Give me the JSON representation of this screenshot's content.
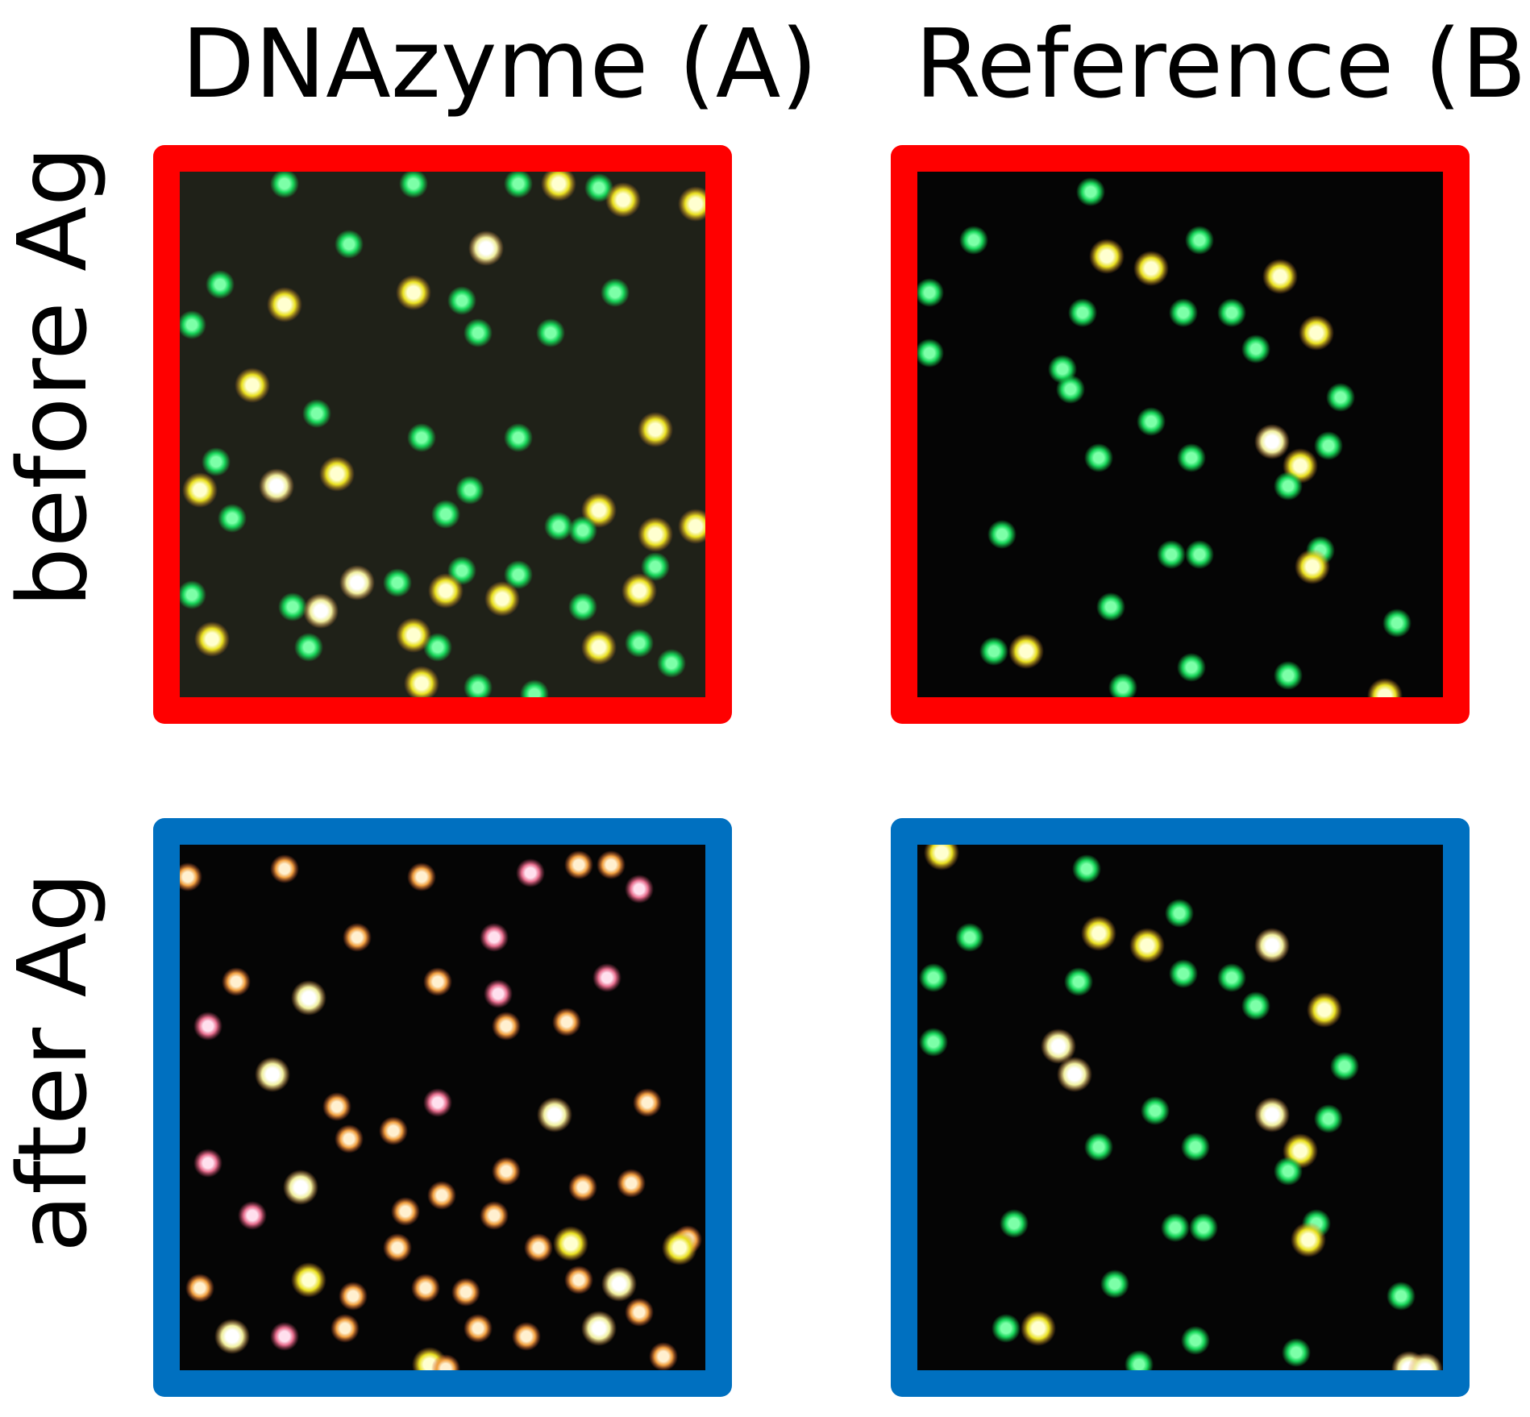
{
  "column_titles": [
    "DNAzyme (A)",
    "Reference (B)"
  ],
  "row_labels": [
    "before Ag",
    "after Ag"
  ],
  "colors": {
    "before_border": "#ff0000",
    "after_border": "#0070c0",
    "background_dna_before": "#1f2118",
    "background_other": "#050505"
  }
}
